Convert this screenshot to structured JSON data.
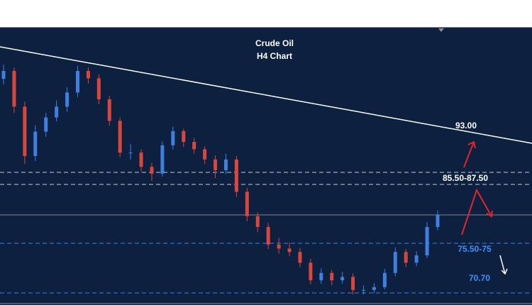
{
  "chart_data": {
    "type": "candlestick",
    "title": "Crude Oil",
    "subtitle": "H4 Chart",
    "ylim": [
      64.4,
      112.9
    ],
    "up_color": "#3f7fe0",
    "down_color": "#d9463c",
    "candles": [
      [
        104.0,
        106.5,
        103.0,
        105.4
      ],
      [
        105.4,
        106.0,
        98.0,
        99.1
      ],
      [
        99.1,
        100.0,
        89.0,
        90.4
      ],
      [
        90.4,
        95.8,
        89.5,
        94.7
      ],
      [
        94.7,
        98.0,
        93.8,
        97.2
      ],
      [
        97.2,
        100.2,
        96.5,
        99.1
      ],
      [
        99.1,
        102.5,
        98.2,
        101.6
      ],
      [
        101.6,
        106.3,
        100.8,
        105.4
      ],
      [
        105.4,
        106.0,
        103.2,
        104.1
      ],
      [
        104.1,
        104.8,
        99.5,
        100.4
      ],
      [
        100.4,
        101.0,
        95.8,
        96.6
      ],
      [
        96.6,
        97.2,
        90.2,
        91.0
      ],
      [
        91.0,
        92.5,
        89.8,
        91.0
      ],
      [
        91.0,
        91.6,
        87.6,
        88.5
      ],
      [
        88.5,
        89.2,
        86.0,
        87.3
      ],
      [
        87.3,
        93.0,
        86.8,
        92.3
      ],
      [
        92.3,
        95.6,
        91.5,
        94.8
      ],
      [
        94.8,
        95.2,
        92.0,
        92.9
      ],
      [
        92.9,
        93.6,
        90.8,
        91.6
      ],
      [
        91.6,
        92.1,
        89.0,
        89.8
      ],
      [
        89.8,
        90.5,
        86.5,
        87.9
      ],
      [
        87.9,
        90.8,
        87.2,
        89.8
      ],
      [
        89.8,
        90.4,
        83.2,
        84.1
      ],
      [
        84.1,
        84.8,
        78.9,
        79.8
      ],
      [
        79.8,
        80.5,
        77.0,
        77.9
      ],
      [
        77.9,
        78.6,
        74.0,
        74.8
      ],
      [
        74.8,
        76.0,
        73.2,
        74.1
      ],
      [
        74.1,
        75.2,
        72.8,
        73.5
      ],
      [
        73.5,
        74.2,
        70.8,
        71.6
      ],
      [
        71.6,
        72.3,
        67.8,
        68.5
      ],
      [
        68.5,
        70.6,
        67.9,
        69.8
      ],
      [
        69.8,
        70.3,
        67.6,
        68.5
      ],
      [
        68.5,
        70.0,
        67.9,
        69.1
      ],
      [
        69.1,
        69.7,
        66.0,
        66.8
      ],
      [
        66.8,
        67.6,
        66.0,
        66.8
      ],
      [
        66.8,
        68.0,
        66.2,
        67.3
      ],
      [
        67.3,
        70.5,
        66.9,
        69.8
      ],
      [
        69.8,
        74.3,
        69.2,
        73.5
      ],
      [
        73.5,
        74.0,
        70.8,
        71.6
      ],
      [
        71.6,
        73.6,
        71.0,
        72.9
      ],
      [
        72.9,
        78.8,
        72.4,
        77.9
      ],
      [
        77.9,
        80.8,
        77.3,
        80.0
      ]
    ],
    "annotations": [
      "93.00",
      "85.50-87.50",
      "75.50-75",
      "70.70"
    ]
  }
}
